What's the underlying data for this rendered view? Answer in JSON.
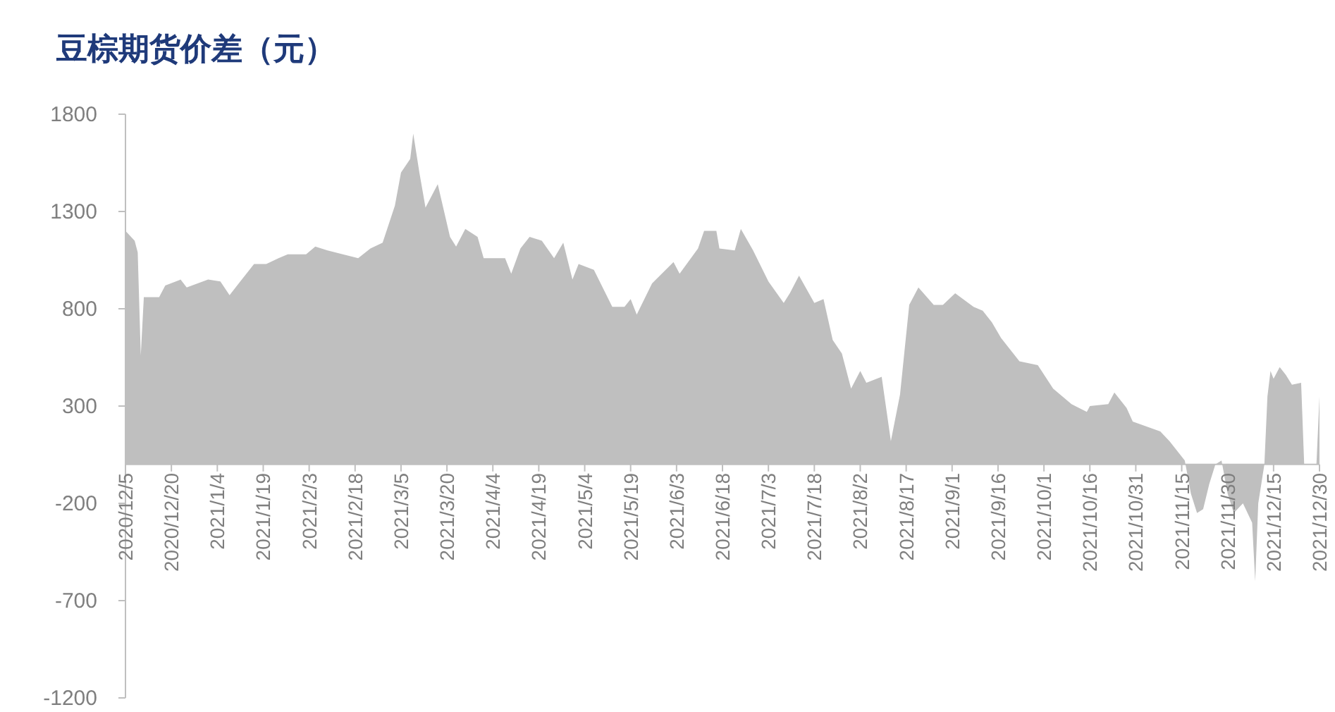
{
  "chart_data": {
    "type": "area",
    "title": "豆棕期货价差（元）",
    "color": "#bfbfbf",
    "x": [
      "2020-12-05",
      "2020-12-08",
      "2020-12-09",
      "2020-12-10",
      "2020-12-11",
      "2020-12-16",
      "2020-12-18",
      "2020-12-23",
      "2020-12-25",
      "2021-01-01",
      "2021-01-05",
      "2021-01-08",
      "2021-01-11",
      "2021-01-16",
      "2021-01-20",
      "2021-01-24",
      "2021-01-27",
      "2021-02-02",
      "2021-02-05",
      "2021-02-09",
      "2021-02-19",
      "2021-02-23",
      "2021-02-27",
      "2021-03-03",
      "2021-03-05",
      "2021-03-08",
      "2021-03-09",
      "2021-03-11",
      "2021-03-13",
      "2021-03-17",
      "2021-03-21",
      "2021-03-23",
      "2021-03-26",
      "2021-03-30",
      "2021-04-01",
      "2021-04-08",
      "2021-04-10",
      "2021-04-13",
      "2021-04-16",
      "2021-04-20",
      "2021-04-24",
      "2021-04-27",
      "2021-04-30",
      "2021-05-02",
      "2021-05-07",
      "2021-05-13",
      "2021-05-17",
      "2021-05-19",
      "2021-05-21",
      "2021-05-26",
      "2021-06-02",
      "2021-06-04",
      "2021-06-10",
      "2021-06-12",
      "2021-06-16",
      "2021-06-17",
      "2021-06-22",
      "2021-06-24",
      "2021-06-28",
      "2021-07-03",
      "2021-07-08",
      "2021-07-10",
      "2021-07-13",
      "2021-07-18",
      "2021-07-21",
      "2021-07-24",
      "2021-07-27",
      "2021-07-30",
      "2021-08-02",
      "2021-08-04",
      "2021-08-09",
      "2021-08-12",
      "2021-08-15",
      "2021-08-18",
      "2021-08-21",
      "2021-08-26",
      "2021-08-29",
      "2021-09-02",
      "2021-09-08",
      "2021-09-11",
      "2021-09-14",
      "2021-09-17",
      "2021-09-23",
      "2021-09-29",
      "2021-10-04",
      "2021-10-10",
      "2021-10-15",
      "2021-10-16",
      "2021-10-22",
      "2021-10-24",
      "2021-10-28",
      "2021-10-30",
      "2021-11-08",
      "2021-11-11",
      "2021-11-16",
      "2021-11-18",
      "2021-11-20",
      "2021-11-22",
      "2021-11-24",
      "2021-11-26",
      "2021-11-28",
      "2021-11-30",
      "2021-12-02",
      "2021-12-05",
      "2021-12-08",
      "2021-12-09",
      "2021-12-10",
      "2021-12-12",
      "2021-12-13",
      "2021-12-14",
      "2021-12-15",
      "2021-12-17",
      "2021-12-19",
      "2021-12-21",
      "2021-12-24",
      "2021-12-25",
      "2021-12-29",
      "2021-12-30"
    ],
    "values": [
      1200,
      1150,
      1090,
      560,
      860,
      860,
      920,
      950,
      910,
      950,
      940,
      870,
      930,
      1030,
      1030,
      1060,
      1080,
      1080,
      1120,
      1100,
      1060,
      1110,
      1140,
      1330,
      1500,
      1570,
      1700,
      1500,
      1320,
      1440,
      1170,
      1120,
      1210,
      1170,
      1060,
      1060,
      980,
      1110,
      1170,
      1150,
      1060,
      1140,
      950,
      1030,
      1000,
      810,
      810,
      850,
      770,
      930,
      1040,
      980,
      1110,
      1200,
      1200,
      1110,
      1100,
      1210,
      1100,
      940,
      830,
      880,
      970,
      830,
      850,
      640,
      570,
      390,
      480,
      420,
      450,
      120,
      360,
      820,
      910,
      820,
      820,
      880,
      810,
      790,
      730,
      650,
      530,
      510,
      390,
      310,
      270,
      300,
      310,
      370,
      290,
      220,
      170,
      120,
      20,
      -150,
      -250,
      -230,
      -100,
      0,
      20,
      -150,
      -250,
      -200,
      -300,
      -600,
      -200,
      0,
      350,
      480,
      440,
      500,
      460,
      410,
      420,
      0,
      0,
      350
    ],
    "xlim": [
      "2020-12-05",
      "2021-12-30"
    ],
    "xticks": [
      {
        "value": "2020-12-05",
        "label": "2020/12/5"
      },
      {
        "value": "2020-12-20",
        "label": "2020/12/20"
      },
      {
        "value": "2021-01-04",
        "label": "2021/1/4"
      },
      {
        "value": "2021-01-19",
        "label": "2021/1/19"
      },
      {
        "value": "2021-02-03",
        "label": "2021/2/3"
      },
      {
        "value": "2021-02-18",
        "label": "2021/2/18"
      },
      {
        "value": "2021-03-05",
        "label": "2021/3/5"
      },
      {
        "value": "2021-03-20",
        "label": "2021/3/20"
      },
      {
        "value": "2021-04-04",
        "label": "2021/4/4"
      },
      {
        "value": "2021-04-19",
        "label": "2021/4/19"
      },
      {
        "value": "2021-05-04",
        "label": "2021/5/4"
      },
      {
        "value": "2021-05-19",
        "label": "2021/5/19"
      },
      {
        "value": "2021-06-03",
        "label": "2021/6/3"
      },
      {
        "value": "2021-06-18",
        "label": "2021/6/18"
      },
      {
        "value": "2021-07-03",
        "label": "2021/7/3"
      },
      {
        "value": "2021-07-18",
        "label": "2021/7/18"
      },
      {
        "value": "2021-08-02",
        "label": "2021/8/2"
      },
      {
        "value": "2021-08-17",
        "label": "2021/8/17"
      },
      {
        "value": "2021-09-01",
        "label": "2021/9/1"
      },
      {
        "value": "2021-09-16",
        "label": "2021/9/16"
      },
      {
        "value": "2021-10-01",
        "label": "2021/10/1"
      },
      {
        "value": "2021-10-16",
        "label": "2021/10/16"
      },
      {
        "value": "2021-10-31",
        "label": "2021/10/31"
      },
      {
        "value": "2021-11-15",
        "label": "2021/11/15"
      },
      {
        "value": "2021-11-30",
        "label": "2021/11/30"
      },
      {
        "value": "2021-12-15",
        "label": "2021/12/15"
      },
      {
        "value": "2021-12-30",
        "label": "2021/12/30"
      }
    ],
    "ylim": [
      -1200,
      1800
    ],
    "yticks": [
      -1200,
      -700,
      -200,
      300,
      800,
      1300,
      1800
    ]
  }
}
